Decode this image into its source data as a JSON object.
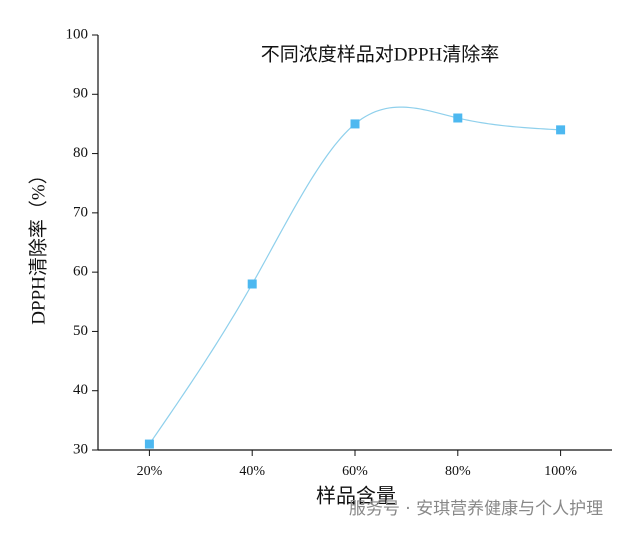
{
  "chart_data": {
    "type": "scatter-spline",
    "title": "不同浓度样品对DPPH清除率",
    "x_label": "样品含量",
    "y_label": "DPPH清除率（%）",
    "x": [
      20,
      40,
      60,
      80,
      100
    ],
    "series": [
      {
        "name": "DPPH清除率",
        "color": "#4db8f0",
        "line_color": "#8fd0ec",
        "values": [
          31,
          58,
          85,
          86,
          84
        ]
      }
    ],
    "xlim": [
      10,
      110
    ],
    "xticks": [
      {
        "value": 20,
        "label": "20%"
      },
      {
        "value": 40,
        "label": "40%"
      },
      {
        "value": 60,
        "label": "60%"
      },
      {
        "value": 80,
        "label": "80%"
      },
      {
        "value": 100,
        "label": "100%"
      }
    ],
    "ylim": [
      30,
      100
    ],
    "yticks": [
      30,
      40,
      50,
      60,
      70,
      80,
      90,
      100
    ],
    "watermark": "服务号 · 安琪营养健康与个人护理"
  }
}
